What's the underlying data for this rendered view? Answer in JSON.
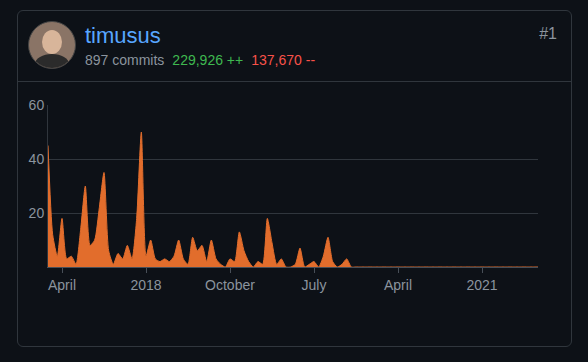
{
  "header": {
    "name": "timusus",
    "commits": "897 commits",
    "additions": "229,926 ++",
    "deletions": "137,670 --",
    "rank": "#1"
  },
  "chart_data": {
    "type": "area",
    "color": "#e26d2c",
    "grid": true,
    "categories": [
      null,
      null,
      null,
      "April",
      null,
      null,
      null,
      null,
      null,
      null,
      null,
      null,
      null,
      null,
      null,
      null,
      null,
      null,
      null,
      null,
      null,
      "2018",
      null,
      null,
      null,
      null,
      null,
      null,
      null,
      null,
      null,
      null,
      null,
      null,
      null,
      null,
      null,
      null,
      null,
      "October",
      null,
      null,
      null,
      null,
      null,
      null,
      null,
      null,
      null,
      null,
      null,
      null,
      null,
      null,
      null,
      null,
      null,
      "July",
      null,
      null,
      null,
      null,
      null,
      null,
      null,
      null,
      null,
      null,
      null,
      null,
      null,
      null,
      null,
      null,
      null,
      "April",
      null,
      null,
      null,
      null,
      null,
      null,
      null,
      null,
      null,
      null,
      null,
      null,
      null,
      null,
      null,
      null,
      null,
      "2021",
      null,
      null,
      null,
      null,
      null,
      null,
      null,
      null,
      null,
      null,
      null,
      null
    ],
    "values": [
      45,
      12,
      4,
      18,
      3,
      4,
      1,
      14,
      30,
      8,
      10,
      22,
      35,
      6,
      1,
      5,
      3,
      8,
      3,
      18,
      50,
      4,
      10,
      3,
      2,
      3,
      2,
      4,
      10,
      3,
      1,
      11,
      6,
      8,
      2,
      10,
      3,
      1,
      0,
      3,
      2,
      13,
      6,
      2,
      0,
      2,
      1,
      18,
      9,
      1,
      3,
      0,
      0,
      1,
      7,
      0,
      1,
      2,
      0,
      4,
      11,
      2,
      0,
      1,
      3,
      0,
      0,
      0,
      0,
      0,
      0,
      0,
      0,
      0,
      0,
      0,
      0,
      0,
      0,
      0,
      0,
      0,
      0,
      0,
      0,
      0,
      0,
      0,
      0,
      0,
      0,
      0,
      0,
      0,
      0,
      0,
      0,
      0,
      0,
      0,
      0,
      0,
      0,
      0,
      0,
      0
    ],
    "ylim": [
      0,
      60
    ],
    "yticks": [
      20,
      40,
      60
    ]
  }
}
